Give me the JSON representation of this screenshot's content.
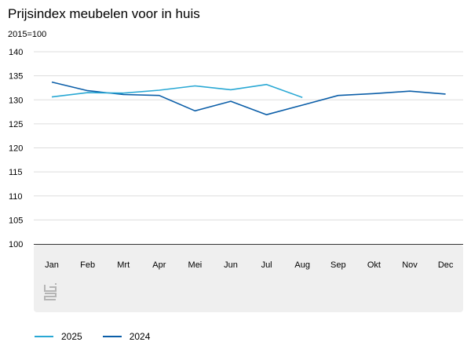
{
  "chart_data": {
    "type": "line",
    "title": "Prijsindex meubelen voor in huis",
    "ylabel": "2015=100",
    "xlabel": "",
    "categories": [
      "Jan",
      "Feb",
      "Mrt",
      "Apr",
      "Mei",
      "Jun",
      "Jul",
      "Aug",
      "Sep",
      "Okt",
      "Nov",
      "Dec"
    ],
    "ylim": [
      100,
      140
    ],
    "yticks": [
      100,
      105,
      110,
      115,
      120,
      125,
      130,
      135,
      140
    ],
    "grid": true,
    "legend": "bottom-left",
    "series": [
      {
        "name": "2025",
        "color": "#29a8d4",
        "values": [
          130.6,
          131.5,
          131.4,
          132.0,
          132.9,
          132.1,
          133.2,
          130.5,
          null,
          null,
          null,
          null
        ]
      },
      {
        "name": "2024",
        "color": "#0b5ea8",
        "values": [
          133.7,
          131.9,
          131.1,
          130.9,
          127.7,
          129.7,
          126.9,
          128.9,
          130.9,
          131.3,
          131.8,
          131.2
        ]
      }
    ]
  }
}
